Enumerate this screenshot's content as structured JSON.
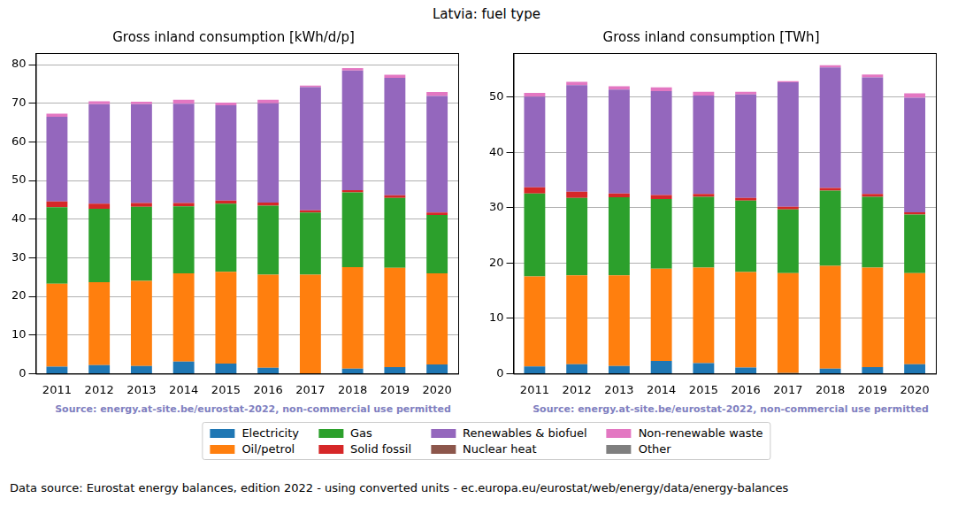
{
  "title": "Latvia: fuel type",
  "legend": "bottom",
  "footer": "Data source: Eurostat energy balances, edition 2022 - using converted units - ec.europa.eu/eurostat/web/energy/data/energy-balances",
  "chart_data": [
    {
      "type": "bar",
      "title": "Gross inland consumption [kWh/d/p]",
      "stacked": true,
      "grid": true,
      "annotation": "Source: energy.at-site.be/eurostat-2022, non-commercial use permitted",
      "categories": [
        "2011",
        "2012",
        "2013",
        "2014",
        "2015",
        "2016",
        "2017",
        "2018",
        "2019",
        "2020"
      ],
      "ylim": [
        0,
        83
      ],
      "yticks": [
        0,
        10,
        20,
        30,
        40,
        50,
        60,
        70,
        80
      ],
      "series": [
        {
          "name": "Electricity",
          "color": "#1f77b4",
          "values": [
            1.8,
            2.2,
            2.0,
            3.1,
            2.6,
            1.5,
            0.1,
            1.3,
            1.7,
            2.4
          ]
        },
        {
          "name": "Oil/petrol",
          "color": "#ff7f0e",
          "values": [
            21.5,
            21.5,
            22.0,
            22.9,
            23.8,
            24.1,
            25.5,
            26.3,
            25.7,
            23.6
          ]
        },
        {
          "name": "Gas",
          "color": "#2ca02c",
          "values": [
            19.8,
            19.0,
            19.2,
            17.3,
            17.6,
            17.9,
            16.1,
            19.3,
            18.1,
            15.1
          ]
        },
        {
          "name": "Solid fossil",
          "color": "#d62728",
          "values": [
            1.5,
            1.3,
            1.0,
            0.9,
            0.8,
            0.8,
            0.6,
            0.6,
            0.7,
            0.6
          ]
        },
        {
          "name": "Renewables & biofuel",
          "color": "#9467bd",
          "values": [
            21.9,
            25.8,
            25.6,
            25.7,
            24.7,
            25.7,
            31.9,
            31.0,
            30.4,
            30.2
          ]
        },
        {
          "name": "Nuclear heat",
          "color": "#8c564b",
          "values": [
            0,
            0,
            0,
            0,
            0,
            0,
            0,
            0,
            0,
            0
          ]
        },
        {
          "name": "Non-renewable waste",
          "color": "#e377c2",
          "values": [
            0.8,
            0.7,
            0.6,
            1.0,
            0.7,
            0.9,
            0.4,
            0.6,
            0.8,
            1.0
          ]
        },
        {
          "name": "Other",
          "color": "#7f7f7f",
          "values": [
            0,
            0,
            0,
            0,
            0,
            0,
            0,
            0,
            0,
            0
          ]
        }
      ]
    },
    {
      "type": "bar",
      "title": "Gross inland consumption [TWh]",
      "stacked": true,
      "grid": true,
      "annotation": "Source: energy.at-site.be/eurostat-2022, non-commercial use permitted",
      "categories": [
        "2011",
        "2012",
        "2013",
        "2014",
        "2015",
        "2016",
        "2017",
        "2018",
        "2019",
        "2020"
      ],
      "ylim": [
        0,
        58
      ],
      "yticks": [
        0,
        10,
        20,
        30,
        40,
        50
      ],
      "series": [
        {
          "name": "Electricity",
          "color": "#1f77b4",
          "values": [
            1.3,
            1.7,
            1.4,
            2.3,
            1.9,
            1.1,
            0.1,
            0.9,
            1.2,
            1.7
          ]
        },
        {
          "name": "Oil/petrol",
          "color": "#ff7f0e",
          "values": [
            16.3,
            16.1,
            16.4,
            16.7,
            17.3,
            17.3,
            18.1,
            18.6,
            18.0,
            16.5
          ]
        },
        {
          "name": "Gas",
          "color": "#2ca02c",
          "values": [
            15.0,
            14.0,
            14.1,
            12.6,
            12.8,
            12.9,
            11.5,
            13.6,
            12.8,
            10.6
          ]
        },
        {
          "name": "Solid fossil",
          "color": "#d62728",
          "values": [
            1.1,
            1.1,
            0.7,
            0.7,
            0.5,
            0.5,
            0.5,
            0.5,
            0.5,
            0.4
          ]
        },
        {
          "name": "Renewables & biofuel",
          "color": "#9467bd",
          "values": [
            16.4,
            19.3,
            18.8,
            18.8,
            17.8,
            18.7,
            22.5,
            21.8,
            21.1,
            20.7
          ]
        },
        {
          "name": "Nuclear heat",
          "color": "#8c564b",
          "values": [
            0,
            0,
            0,
            0,
            0,
            0,
            0,
            0,
            0,
            0
          ]
        },
        {
          "name": "Non-renewable waste",
          "color": "#e377c2",
          "values": [
            0.7,
            0.6,
            0.6,
            0.7,
            0.7,
            0.5,
            0.2,
            0.4,
            0.5,
            0.8
          ]
        },
        {
          "name": "Other",
          "color": "#7f7f7f",
          "values": [
            0,
            0,
            0,
            0,
            0,
            0,
            0,
            0,
            0,
            0
          ]
        }
      ]
    }
  ]
}
